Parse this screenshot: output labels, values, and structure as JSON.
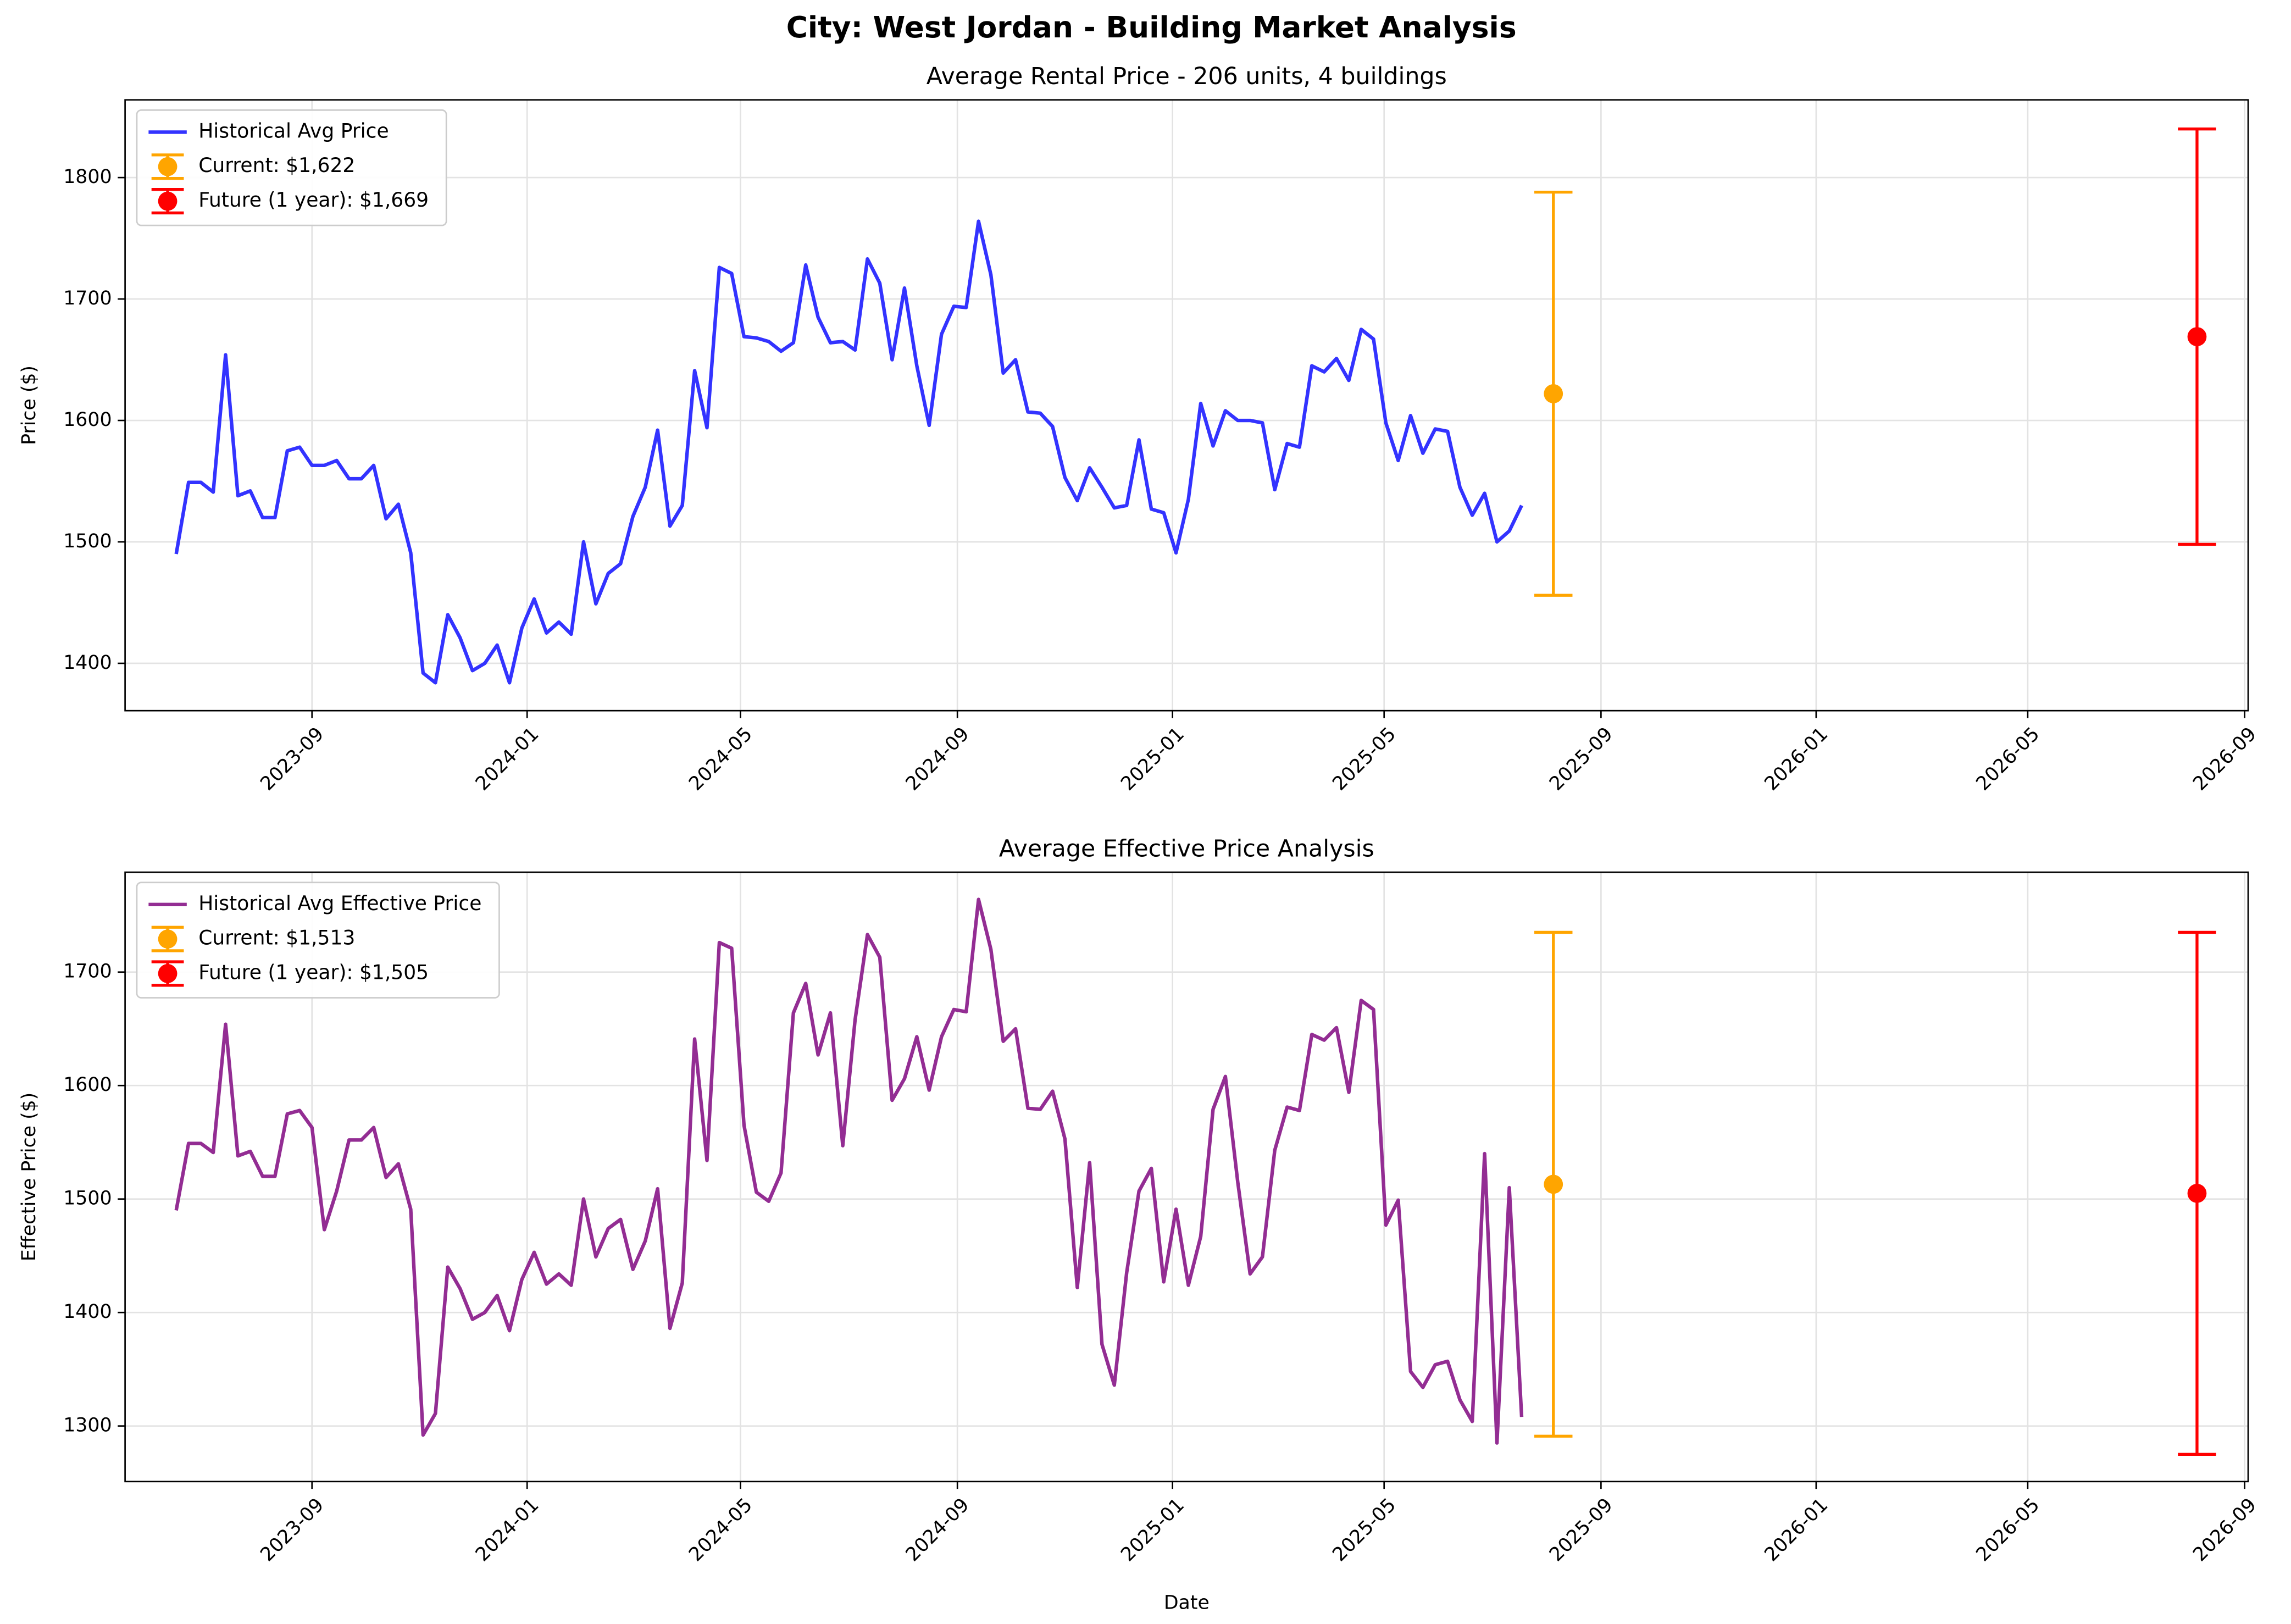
{
  "title": "City: West Jordan - Building Market Analysis",
  "chart_data": [
    {
      "type": "line",
      "title": "Average Rental Price - 206 units, 4 buildings",
      "ylabel": "Price ($)",
      "x": [
        "2023-06-16",
        "2023-06-23",
        "2023-06-30",
        "2023-07-07",
        "2023-07-14",
        "2023-07-21",
        "2023-07-28",
        "2023-08-04",
        "2023-08-11",
        "2023-08-18",
        "2023-08-25",
        "2023-09-01",
        "2023-09-08",
        "2023-09-15",
        "2023-09-22",
        "2023-09-29",
        "2023-10-06",
        "2023-10-13",
        "2023-10-20",
        "2023-10-27",
        "2023-11-03",
        "2023-11-10",
        "2023-11-17",
        "2023-11-24",
        "2023-12-01",
        "2023-12-08",
        "2023-12-15",
        "2023-12-22",
        "2023-12-29",
        "2024-01-05",
        "2024-01-12",
        "2024-01-19",
        "2024-01-26",
        "2024-02-02",
        "2024-02-09",
        "2024-02-16",
        "2024-02-23",
        "2024-03-01",
        "2024-03-08",
        "2024-03-15",
        "2024-03-22",
        "2024-03-29",
        "2024-04-05",
        "2024-04-12",
        "2024-04-19",
        "2024-04-26",
        "2024-05-03",
        "2024-05-10",
        "2024-05-17",
        "2024-05-24",
        "2024-05-31",
        "2024-06-07",
        "2024-06-14",
        "2024-06-21",
        "2024-06-28",
        "2024-07-05",
        "2024-07-12",
        "2024-07-19",
        "2024-07-26",
        "2024-08-02",
        "2024-08-09",
        "2024-08-16",
        "2024-08-23",
        "2024-08-30",
        "2024-09-06",
        "2024-09-13",
        "2024-09-20",
        "2024-09-27",
        "2024-10-04",
        "2024-10-11",
        "2024-10-18",
        "2024-10-25",
        "2024-11-01",
        "2024-11-08",
        "2024-11-15",
        "2024-11-22",
        "2024-11-29",
        "2024-12-06",
        "2024-12-13",
        "2024-12-20",
        "2024-12-27",
        "2025-01-03",
        "2025-01-10",
        "2025-01-17",
        "2025-01-24",
        "2025-01-31",
        "2025-02-07",
        "2025-02-14",
        "2025-02-21",
        "2025-02-28",
        "2025-03-07",
        "2025-03-14",
        "2025-03-21",
        "2025-03-28",
        "2025-04-04",
        "2025-04-11",
        "2025-04-18",
        "2025-04-25",
        "2025-05-02",
        "2025-05-09",
        "2025-05-16",
        "2025-05-23",
        "2025-05-30",
        "2025-06-06",
        "2025-06-13",
        "2025-06-20",
        "2025-06-27",
        "2025-07-04",
        "2025-07-11",
        "2025-07-18"
      ],
      "series": [
        {
          "name": "Historical Avg Price",
          "color": "#3333ff",
          "values": [
            1490,
            1549,
            1549,
            1541,
            1654,
            1538,
            1542,
            1520,
            1520,
            1575,
            1578,
            1563,
            1563,
            1567,
            1552,
            1552,
            1563,
            1519,
            1531,
            1491,
            1392,
            1384,
            1440,
            1421,
            1394,
            1400,
            1415,
            1384,
            1429,
            1453,
            1425,
            1434,
            1424,
            1500,
            1449,
            1474,
            1482,
            1521,
            1545,
            1592,
            1513,
            1530,
            1641,
            1594,
            1726,
            1721,
            1669,
            1668,
            1665,
            1657,
            1664,
            1728,
            1685,
            1664,
            1665,
            1658,
            1733,
            1713,
            1650,
            1709,
            1645,
            1596,
            1671,
            1694,
            1693,
            1764,
            1720,
            1639,
            1650,
            1607,
            1606,
            1595,
            1553,
            1534,
            1561,
            1545,
            1528,
            1530,
            1584,
            1527,
            1524,
            1491,
            1535,
            1614,
            1579,
            1608,
            1600,
            1600,
            1598,
            1543,
            1581,
            1578,
            1645,
            1640,
            1651,
            1633,
            1675,
            1667,
            1598,
            1567,
            1604,
            1573,
            1593,
            1591,
            1545,
            1522,
            1540,
            1500,
            1509,
            1530
          ]
        }
      ],
      "errorbars": [
        {
          "name": "Current: $1,622",
          "x": "2025-08-05",
          "value": 1622,
          "error": 166,
          "color": "#ffa500"
        },
        {
          "name": "Future (1 year): $1,669",
          "x": "2026-08-05",
          "value": 1669,
          "error": 171,
          "color": "#ff0000"
        }
      ],
      "xlim": [
        "2023-05-18",
        "2026-09-03"
      ],
      "xticks": [
        "2023-09",
        "2024-01",
        "2024-05",
        "2024-09",
        "2025-01",
        "2025-05",
        "2025-09",
        "2026-01",
        "2026-05",
        "2026-09"
      ],
      "ylim": [
        1361,
        1864
      ],
      "yticks": [
        1400,
        1500,
        1600,
        1700,
        1800
      ],
      "grid": true,
      "legend": "upper left"
    },
    {
      "type": "line",
      "title": "Average Effective Price Analysis",
      "ylabel": "Effective Price ($)",
      "xlabel": "Date",
      "x": [
        "2023-06-16",
        "2023-06-23",
        "2023-06-30",
        "2023-07-07",
        "2023-07-14",
        "2023-07-21",
        "2023-07-28",
        "2023-08-04",
        "2023-08-11",
        "2023-08-18",
        "2023-08-25",
        "2023-09-01",
        "2023-09-08",
        "2023-09-15",
        "2023-09-22",
        "2023-09-29",
        "2023-10-06",
        "2023-10-13",
        "2023-10-20",
        "2023-10-27",
        "2023-11-03",
        "2023-11-10",
        "2023-11-17",
        "2023-11-24",
        "2023-12-01",
        "2023-12-08",
        "2023-12-15",
        "2023-12-22",
        "2023-12-29",
        "2024-01-05",
        "2024-01-12",
        "2024-01-19",
        "2024-01-26",
        "2024-02-02",
        "2024-02-09",
        "2024-02-16",
        "2024-02-23",
        "2024-03-01",
        "2024-03-08",
        "2024-03-15",
        "2024-03-22",
        "2024-03-29",
        "2024-04-05",
        "2024-04-12",
        "2024-04-19",
        "2024-04-26",
        "2024-05-03",
        "2024-05-10",
        "2024-05-17",
        "2024-05-24",
        "2024-05-31",
        "2024-06-07",
        "2024-06-14",
        "2024-06-21",
        "2024-06-28",
        "2024-07-05",
        "2024-07-12",
        "2024-07-19",
        "2024-07-26",
        "2024-08-02",
        "2024-08-09",
        "2024-08-16",
        "2024-08-23",
        "2024-08-30",
        "2024-09-06",
        "2024-09-13",
        "2024-09-20",
        "2024-09-27",
        "2024-10-04",
        "2024-10-11",
        "2024-10-18",
        "2024-10-25",
        "2024-11-01",
        "2024-11-08",
        "2024-11-15",
        "2024-11-22",
        "2024-11-29",
        "2024-12-06",
        "2024-12-13",
        "2024-12-20",
        "2024-12-27",
        "2025-01-03",
        "2025-01-10",
        "2025-01-17",
        "2025-01-24",
        "2025-01-31",
        "2025-02-07",
        "2025-02-14",
        "2025-02-21",
        "2025-02-28",
        "2025-03-07",
        "2025-03-14",
        "2025-03-21",
        "2025-03-28",
        "2025-04-04",
        "2025-04-11",
        "2025-04-18",
        "2025-04-25",
        "2025-05-02",
        "2025-05-09",
        "2025-05-16",
        "2025-05-23",
        "2025-05-30",
        "2025-06-06",
        "2025-06-13",
        "2025-06-20",
        "2025-06-27",
        "2025-07-04",
        "2025-07-11",
        "2025-07-18"
      ],
      "series": [
        {
          "name": "Historical Avg Effective Price",
          "color": "#932d93",
          "values": [
            1490,
            1549,
            1549,
            1541,
            1654,
            1538,
            1542,
            1520,
            1520,
            1575,
            1578,
            1563,
            1473,
            1507,
            1552,
            1552,
            1563,
            1519,
            1531,
            1491,
            1292,
            1311,
            1440,
            1421,
            1394,
            1400,
            1415,
            1384,
            1429,
            1453,
            1425,
            1434,
            1424,
            1500,
            1449,
            1474,
            1482,
            1438,
            1463,
            1509,
            1386,
            1426,
            1641,
            1534,
            1726,
            1721,
            1565,
            1506,
            1498,
            1523,
            1664,
            1690,
            1627,
            1664,
            1547,
            1658,
            1733,
            1713,
            1587,
            1606,
            1643,
            1596,
            1643,
            1667,
            1665,
            1764,
            1720,
            1639,
            1650,
            1580,
            1579,
            1595,
            1553,
            1422,
            1532,
            1372,
            1336,
            1435,
            1507,
            1527,
            1427,
            1491,
            1424,
            1467,
            1579,
            1608,
            1515,
            1434,
            1449,
            1543,
            1581,
            1578,
            1645,
            1640,
            1651,
            1594,
            1675,
            1667,
            1477,
            1499,
            1348,
            1334,
            1354,
            1357,
            1323,
            1304,
            1540,
            1285,
            1510,
            1308
          ]
        }
      ],
      "errorbars": [
        {
          "name": "Current: $1,513",
          "x": "2025-08-05",
          "value": 1513,
          "error": 222,
          "color": "#ffa500"
        },
        {
          "name": "Future (1 year): $1,505",
          "x": "2026-08-05",
          "value": 1505,
          "error": 230,
          "color": "#ff0000"
        }
      ],
      "xlim": [
        "2023-05-18",
        "2026-09-03"
      ],
      "xticks": [
        "2023-09",
        "2024-01",
        "2024-05",
        "2024-09",
        "2025-01",
        "2025-05",
        "2025-09",
        "2026-01",
        "2026-05",
        "2026-09"
      ],
      "ylim": [
        1251,
        1788
      ],
      "yticks": [
        1300,
        1400,
        1500,
        1600,
        1700
      ],
      "grid": true,
      "legend": "upper left"
    }
  ]
}
